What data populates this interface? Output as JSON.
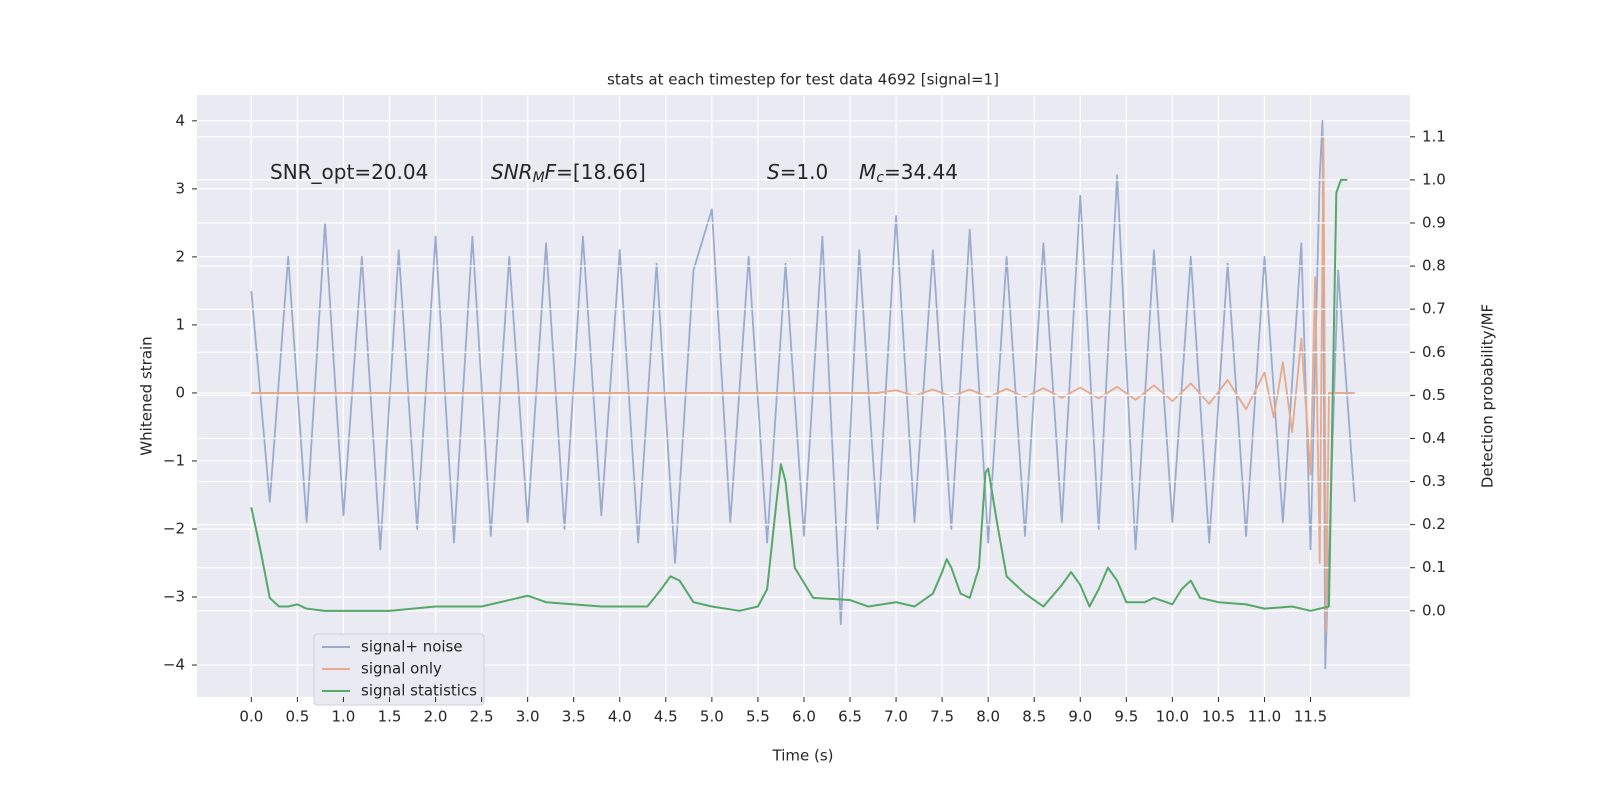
{
  "chart_data": {
    "type": "line",
    "title": "stats at each timestep for test data 4692 [signal=1]",
    "xlabel": "Time (s)",
    "ylabel": "Whitened strain",
    "y2label": "Detection probability/MF",
    "annotations": [
      {
        "parts": [
          {
            "text": "SNR_opt=20.04",
            "style": "normal"
          }
        ]
      },
      {
        "parts": [
          {
            "text": "SNR",
            "style": "italic"
          },
          {
            "text": "M",
            "style": "italic-sub"
          },
          {
            "text": "F",
            "style": "italic"
          },
          {
            "text": "=[18.66]",
            "style": "normal"
          }
        ]
      },
      {
        "parts": [
          {
            "text": "S",
            "style": "italic"
          },
          {
            "text": "=1.0",
            "style": "normal"
          }
        ]
      },
      {
        "parts": [
          {
            "text": "M",
            "style": "italic"
          },
          {
            "text": "c",
            "style": "italic-sub"
          },
          {
            "text": "=34.44",
            "style": "normal"
          }
        ]
      }
    ],
    "xlim": [
      -0.59,
      12.58
    ],
    "ylim": [
      -4.47,
      4.38
    ],
    "y2lim": [
      -0.2,
      1.197
    ],
    "xticks": [
      {
        "value": 0,
        "label": "0.0"
      },
      0.5,
      {
        "value": 1,
        "label": "1.0"
      },
      1.5,
      {
        "value": 2,
        "label": "2.0"
      },
      2.5,
      {
        "value": 3,
        "label": "3.0"
      },
      3.5,
      {
        "value": 4,
        "label": "4.0"
      },
      4.5,
      {
        "value": 5,
        "label": "5.0"
      },
      5.5,
      {
        "value": 6,
        "label": "6.0"
      },
      6.5,
      {
        "value": 7,
        "label": "7.0"
      },
      7.5,
      {
        "value": 8,
        "label": "8.0"
      },
      8.5,
      {
        "value": 9,
        "label": "9.0"
      },
      9.5,
      {
        "value": 10,
        "label": "10.0"
      },
      10.5,
      {
        "value": 11,
        "label": "11.0"
      },
      11.5
    ],
    "yticks": [
      {
        "value": -4,
        "label": "−4"
      },
      {
        "value": -3,
        "label": "−3"
      },
      {
        "value": -2,
        "label": "−2"
      },
      {
        "value": -1,
        "label": "−1"
      },
      0,
      1,
      2,
      3,
      4
    ],
    "y2ticks": [
      {
        "value": 0,
        "label": "0.0"
      },
      0.1,
      0.2,
      0.3,
      0.4,
      0.5,
      0.6,
      0.7,
      0.8,
      0.9,
      {
        "value": 1,
        "label": "1.0"
      },
      1.1
    ],
    "grid": true,
    "legend": "lower left",
    "series": [
      {
        "name": "signal+ noise",
        "color": "#9aabd0",
        "x": [
          0,
          0.2,
          0.4,
          0.6,
          0.8,
          1.0,
          1.2,
          1.4,
          1.6,
          1.8,
          2.0,
          2.2,
          2.4,
          2.6,
          2.8,
          3.0,
          3.2,
          3.4,
          3.6,
          3.8,
          4.0,
          4.2,
          4.4,
          4.6,
          4.8,
          5.0,
          5.2,
          5.4,
          5.6,
          5.8,
          6.0,
          6.2,
          6.4,
          6.6,
          6.8,
          7.0,
          7.2,
          7.4,
          7.6,
          7.8,
          8.0,
          8.2,
          8.4,
          8.6,
          8.8,
          9.0,
          9.2,
          9.4,
          9.6,
          9.8,
          10.0,
          10.2,
          10.4,
          10.6,
          10.8,
          11.0,
          11.2,
          11.4,
          11.5,
          11.6,
          11.63,
          11.66,
          11.8,
          11.98
        ],
        "values": [
          1.5,
          -1.6,
          2.0,
          -1.9,
          2.5,
          -1.8,
          2.0,
          -2.3,
          2.1,
          -2.0,
          2.3,
          -2.2,
          2.3,
          -2.1,
          2.0,
          -1.9,
          2.2,
          -2.0,
          2.3,
          -1.8,
          2.1,
          -2.2,
          1.9,
          -2.5,
          1.8,
          2.7,
          -1.9,
          2.0,
          -2.2,
          1.9,
          -2.1,
          2.3,
          -3.4,
          2.1,
          -2.0,
          2.6,
          -1.9,
          2.1,
          -2.0,
          2.4,
          -2.2,
          2.0,
          -2.1,
          2.2,
          -1.9,
          2.9,
          -2.0,
          3.2,
          -2.3,
          2.1,
          -1.9,
          2.0,
          -2.2,
          1.9,
          -2.1,
          2.0,
          -1.9,
          2.2,
          -2.3,
          3.2,
          4.0,
          -4.05,
          1.8,
          -1.6
        ]
      },
      {
        "name": "signal only",
        "color": "#e6a98a",
        "x": [
          0,
          6.8,
          7.0,
          7.2,
          7.4,
          7.6,
          7.8,
          8.0,
          8.2,
          8.4,
          8.6,
          8.8,
          9.0,
          9.2,
          9.4,
          9.6,
          9.8,
          10.0,
          10.2,
          10.4,
          10.6,
          10.8,
          11.0,
          11.1,
          11.2,
          11.3,
          11.4,
          11.5,
          11.55,
          11.6,
          11.64,
          11.67,
          11.7,
          11.98
        ],
        "values": [
          0,
          0,
          0.04,
          -0.04,
          0.05,
          -0.05,
          0.05,
          -0.06,
          0.06,
          -0.06,
          0.07,
          -0.07,
          0.08,
          -0.08,
          0.09,
          -0.1,
          0.11,
          -0.12,
          0.14,
          -0.16,
          0.19,
          -0.24,
          0.3,
          -0.36,
          0.45,
          -0.58,
          0.8,
          -1.2,
          1.7,
          -2.5,
          3.75,
          -3.5,
          0,
          0
        ]
      },
      {
        "name": "signal statistics",
        "color": "#55a868",
        "axis": "y2",
        "x": [
          0.0,
          0.1,
          0.2,
          0.3,
          0.4,
          0.5,
          0.6,
          0.8,
          1.0,
          1.5,
          2.0,
          2.5,
          2.8,
          3.0,
          3.2,
          3.5,
          3.8,
          4.0,
          4.3,
          4.45,
          4.55,
          4.65,
          4.8,
          5.0,
          5.3,
          5.5,
          5.6,
          5.7,
          5.75,
          5.8,
          5.9,
          6.1,
          6.5,
          6.7,
          7.0,
          7.2,
          7.4,
          7.5,
          7.55,
          7.6,
          7.7,
          7.8,
          7.9,
          7.97,
          8.0,
          8.1,
          8.2,
          8.4,
          8.6,
          8.8,
          8.9,
          9.0,
          9.1,
          9.2,
          9.3,
          9.4,
          9.5,
          9.7,
          9.8,
          10.0,
          10.1,
          10.2,
          10.3,
          10.5,
          10.8,
          11.0,
          11.3,
          11.5,
          11.7,
          11.78,
          11.83,
          11.9
        ],
        "values": [
          0.24,
          0.14,
          0.03,
          0.01,
          0.01,
          0.015,
          0.005,
          0.0,
          0.0,
          0.0,
          0.01,
          0.01,
          0.025,
          0.035,
          0.02,
          0.015,
          0.01,
          0.01,
          0.01,
          0.05,
          0.08,
          0.07,
          0.02,
          0.01,
          0.0,
          0.01,
          0.05,
          0.25,
          0.34,
          0.3,
          0.1,
          0.03,
          0.025,
          0.01,
          0.02,
          0.01,
          0.04,
          0.09,
          0.12,
          0.1,
          0.04,
          0.03,
          0.1,
          0.32,
          0.33,
          0.2,
          0.08,
          0.04,
          0.01,
          0.06,
          0.09,
          0.06,
          0.01,
          0.05,
          0.1,
          0.07,
          0.02,
          0.02,
          0.03,
          0.015,
          0.05,
          0.07,
          0.03,
          0.02,
          0.015,
          0.005,
          0.01,
          0.0,
          0.01,
          0.97,
          1.0,
          1.0
        ]
      }
    ]
  }
}
